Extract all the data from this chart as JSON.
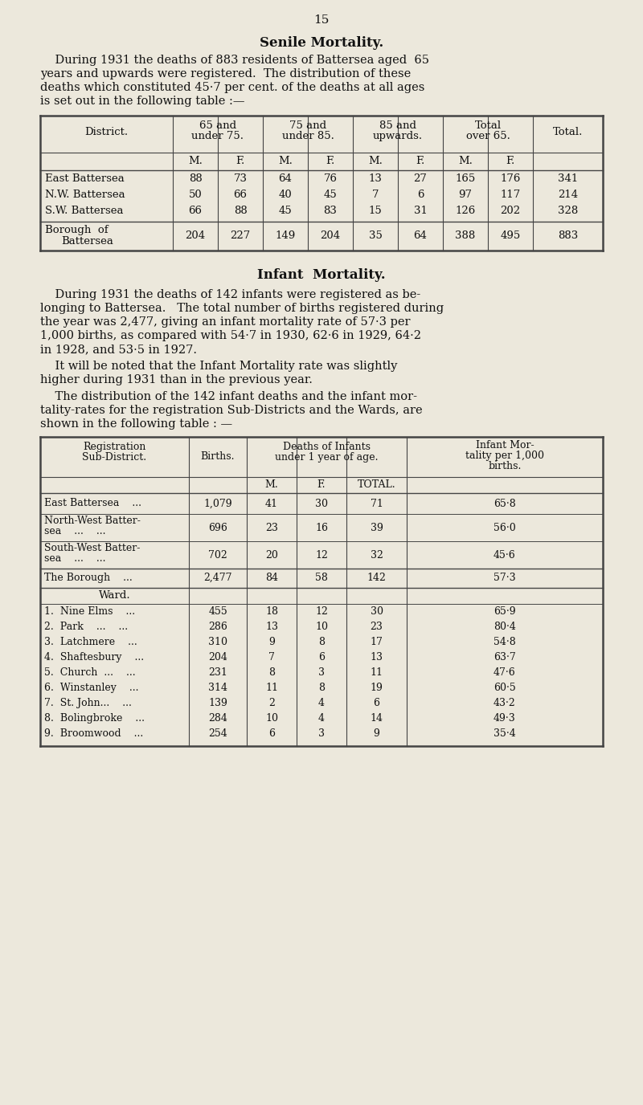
{
  "page_number": "15",
  "bg_color": "#ece8dc",
  "text_color": "#1a1a1a",
  "senile_title": "Senile Mortality.",
  "senile_para1_lines": [
    "    During 1931 the deaths of 883 residents of Battersea aged  65",
    "years and upwards were registered.  The distribution of these",
    "deaths which constituted 45·7 per cent. of the deaths at all ages",
    "is set out in the following table :—"
  ],
  "senile_table": {
    "rows": [
      [
        "East Battersea",
        "88",
        "73",
        "64",
        "76",
        "13",
        "27",
        "165",
        "176",
        "341"
      ],
      [
        "N.W. Battersea",
        "50",
        "66",
        "40",
        "45",
        "7",
        "6",
        "97",
        "117",
        "214"
      ],
      [
        "S.W. Battersea",
        "66",
        "88",
        "45",
        "83",
        "15",
        "31",
        "126",
        "202",
        "328"
      ]
    ],
    "total_row": [
      "204",
      "227",
      "149",
      "204",
      "35",
      "64",
      "388",
      "495",
      "883"
    ]
  },
  "infant_title": "Infant  Mortality.",
  "infant_para1_lines": [
    "    During 1931 the deaths of 142 infants were registered as be-",
    "longing to Battersea.   The total number of births registered during",
    "the year was 2,477, giving an infant mortality rate of 57·3 per",
    "1,000 births, as compared with 54·7 in 1930, 62·6 in 1929, 64·2",
    "in 1928, and 53·5 in 1927."
  ],
  "infant_para2_lines": [
    "    It will be noted that the Infant Mortality rate was slightly",
    "higher during 1931 than in the previous year."
  ],
  "infant_para3_lines": [
    "    The distribution of the 142 infant deaths and the infant mor-",
    "tality-rates for the registration Sub-Districts and the Wards, are",
    "shown in the following table : —"
  ],
  "infant_table": {
    "sub_district_rows": [
      [
        "East Battersea    ...",
        "1,079",
        "41",
        "30",
        "71",
        "65·8"
      ],
      [
        "North-West Batter-\nsea    ...    ...",
        "696",
        "23",
        "16",
        "39",
        "56·0"
      ],
      [
        "South-West Batter-\nsea    ...    ...",
        "702",
        "20",
        "12",
        "32",
        "45·6"
      ]
    ],
    "borough_row": [
      "The Borough    ...",
      "2,477",
      "84",
      "58",
      "142",
      "57·3"
    ],
    "ward_header": "Ward.",
    "ward_rows": [
      [
        "1.  Nine Elms    ...",
        "455",
        "18",
        "12",
        "30",
        "65·9"
      ],
      [
        "2.  Park    ...    ...",
        "286",
        "13",
        "10",
        "23",
        "80·4"
      ],
      [
        "3.  Latchmere    ...",
        "310",
        "9",
        "8",
        "17",
        "54·8"
      ],
      [
        "4.  Shaftesbury    ...",
        "204",
        "7",
        "6",
        "13",
        "63·7"
      ],
      [
        "5.  Church  ...    ...",
        "231",
        "8",
        "3",
        "11",
        "47·6"
      ],
      [
        "6.  Winstanley    ...",
        "314",
        "11",
        "8",
        "19",
        "60·5"
      ],
      [
        "7.  St. John...    ...",
        "139",
        "2",
        "4",
        "6",
        "43·2"
      ],
      [
        "8.  Bolingbroke    ...",
        "284",
        "10",
        "4",
        "14",
        "49·3"
      ],
      [
        "9.  Broomwood    ...",
        "254",
        "6",
        "3",
        "9",
        "35·4"
      ]
    ]
  }
}
